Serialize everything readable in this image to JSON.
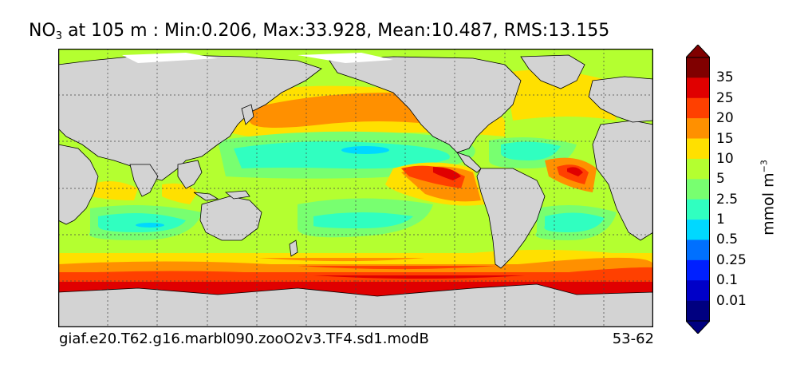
{
  "title": {
    "species": "NO",
    "subscript": "3",
    "rest": "at 105 m : Min:0.206, Max:33.928, Mean:10.487, RMS:13.155"
  },
  "footer": {
    "case_name": "giaf.e20.T62.g16.marbl090.zooO2v3.TF4.sd1.modB",
    "years": "53-62"
  },
  "colorbar": {
    "unit_main": "mmol m",
    "unit_exp": "−3",
    "levels": [
      "0.01",
      "0.1",
      "0.25",
      "0.5",
      "1",
      "2.5",
      "5",
      "10",
      "15",
      "20",
      "25",
      "35"
    ],
    "colors": [
      "#000080",
      "#0000c8",
      "#0020ff",
      "#0070ff",
      "#00d8ff",
      "#30ffc0",
      "#78ff70",
      "#b4ff30",
      "#ffe000",
      "#ff9000",
      "#ff4000",
      "#e00000",
      "#800000"
    ],
    "under_color": "#000080",
    "over_color": "#800000"
  },
  "map": {
    "land_color": "#d3d3d3",
    "missing_color": "#ffffff",
    "graticule": "dashed",
    "coast_color": "#000000"
  }
}
